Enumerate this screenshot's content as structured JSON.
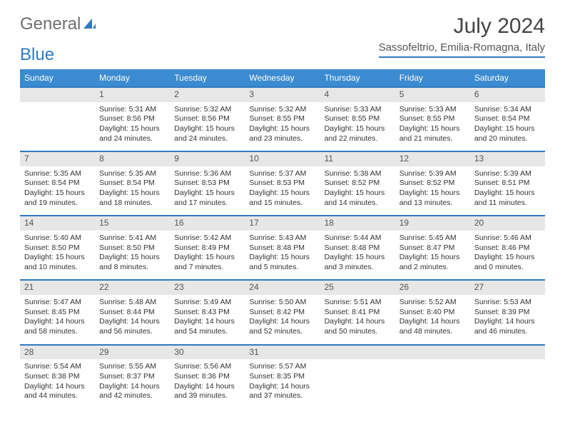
{
  "brand": {
    "part1": "General",
    "part2": "Blue"
  },
  "title": "July 2024",
  "location": "Sassofeltrio, Emilia-Romagna, Italy",
  "colors": {
    "header_bg": "#3b8bd0",
    "accent_line": "#2f7ac0",
    "daynum_bg": "#e7e7e7",
    "text": "#333333",
    "muted": "#6f6f6f"
  },
  "days_of_week": [
    "Sunday",
    "Monday",
    "Tuesday",
    "Wednesday",
    "Thursday",
    "Friday",
    "Saturday"
  ],
  "weeks": [
    {
      "cells": [
        null,
        {
          "n": "1",
          "sr": "5:31 AM",
          "ss": "8:56 PM",
          "dl": "15 hours and 24 minutes."
        },
        {
          "n": "2",
          "sr": "5:32 AM",
          "ss": "8:56 PM",
          "dl": "15 hours and 24 minutes."
        },
        {
          "n": "3",
          "sr": "5:32 AM",
          "ss": "8:55 PM",
          "dl": "15 hours and 23 minutes."
        },
        {
          "n": "4",
          "sr": "5:33 AM",
          "ss": "8:55 PM",
          "dl": "15 hours and 22 minutes."
        },
        {
          "n": "5",
          "sr": "5:33 AM",
          "ss": "8:55 PM",
          "dl": "15 hours and 21 minutes."
        },
        {
          "n": "6",
          "sr": "5:34 AM",
          "ss": "8:54 PM",
          "dl": "15 hours and 20 minutes."
        }
      ]
    },
    {
      "cells": [
        {
          "n": "7",
          "sr": "5:35 AM",
          "ss": "8:54 PM",
          "dl": "15 hours and 19 minutes."
        },
        {
          "n": "8",
          "sr": "5:35 AM",
          "ss": "8:54 PM",
          "dl": "15 hours and 18 minutes."
        },
        {
          "n": "9",
          "sr": "5:36 AM",
          "ss": "8:53 PM",
          "dl": "15 hours and 17 minutes."
        },
        {
          "n": "10",
          "sr": "5:37 AM",
          "ss": "8:53 PM",
          "dl": "15 hours and 15 minutes."
        },
        {
          "n": "11",
          "sr": "5:38 AM",
          "ss": "8:52 PM",
          "dl": "15 hours and 14 minutes."
        },
        {
          "n": "12",
          "sr": "5:39 AM",
          "ss": "8:52 PM",
          "dl": "15 hours and 13 minutes."
        },
        {
          "n": "13",
          "sr": "5:39 AM",
          "ss": "8:51 PM",
          "dl": "15 hours and 11 minutes."
        }
      ]
    },
    {
      "cells": [
        {
          "n": "14",
          "sr": "5:40 AM",
          "ss": "8:50 PM",
          "dl": "15 hours and 10 minutes."
        },
        {
          "n": "15",
          "sr": "5:41 AM",
          "ss": "8:50 PM",
          "dl": "15 hours and 8 minutes."
        },
        {
          "n": "16",
          "sr": "5:42 AM",
          "ss": "8:49 PM",
          "dl": "15 hours and 7 minutes."
        },
        {
          "n": "17",
          "sr": "5:43 AM",
          "ss": "8:48 PM",
          "dl": "15 hours and 5 minutes."
        },
        {
          "n": "18",
          "sr": "5:44 AM",
          "ss": "8:48 PM",
          "dl": "15 hours and 3 minutes."
        },
        {
          "n": "19",
          "sr": "5:45 AM",
          "ss": "8:47 PM",
          "dl": "15 hours and 2 minutes."
        },
        {
          "n": "20",
          "sr": "5:46 AM",
          "ss": "8:46 PM",
          "dl": "15 hours and 0 minutes."
        }
      ]
    },
    {
      "cells": [
        {
          "n": "21",
          "sr": "5:47 AM",
          "ss": "8:45 PM",
          "dl": "14 hours and 58 minutes."
        },
        {
          "n": "22",
          "sr": "5:48 AM",
          "ss": "8:44 PM",
          "dl": "14 hours and 56 minutes."
        },
        {
          "n": "23",
          "sr": "5:49 AM",
          "ss": "8:43 PM",
          "dl": "14 hours and 54 minutes."
        },
        {
          "n": "24",
          "sr": "5:50 AM",
          "ss": "8:42 PM",
          "dl": "14 hours and 52 minutes."
        },
        {
          "n": "25",
          "sr": "5:51 AM",
          "ss": "8:41 PM",
          "dl": "14 hours and 50 minutes."
        },
        {
          "n": "26",
          "sr": "5:52 AM",
          "ss": "8:40 PM",
          "dl": "14 hours and 48 minutes."
        },
        {
          "n": "27",
          "sr": "5:53 AM",
          "ss": "8:39 PM",
          "dl": "14 hours and 46 minutes."
        }
      ]
    },
    {
      "cells": [
        {
          "n": "28",
          "sr": "5:54 AM",
          "ss": "8:38 PM",
          "dl": "14 hours and 44 minutes."
        },
        {
          "n": "29",
          "sr": "5:55 AM",
          "ss": "8:37 PM",
          "dl": "14 hours and 42 minutes."
        },
        {
          "n": "30",
          "sr": "5:56 AM",
          "ss": "8:36 PM",
          "dl": "14 hours and 39 minutes."
        },
        {
          "n": "31",
          "sr": "5:57 AM",
          "ss": "8:35 PM",
          "dl": "14 hours and 37 minutes."
        },
        null,
        null,
        null
      ]
    }
  ],
  "labels": {
    "sunrise": "Sunrise:",
    "sunset": "Sunset:",
    "daylight": "Daylight:"
  }
}
